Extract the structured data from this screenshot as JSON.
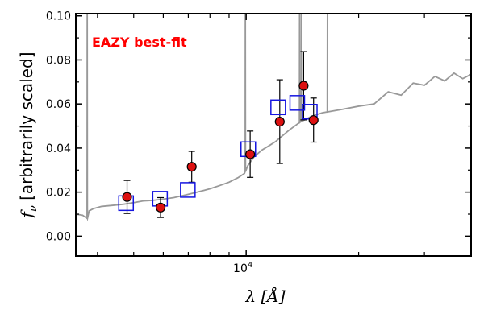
{
  "chart_data": {
    "type": "scatter",
    "title": "",
    "annotation": "EAZY best-fit",
    "xlabel": "λ [Å]",
    "ylabel_prefix": "f",
    "ylabel_sub": "ν",
    "ylabel_rest": " [arbitrarily scaled]",
    "xscale": "log",
    "xlim": [
      3500,
      40000
    ],
    "ylim": [
      -0.009,
      0.101
    ],
    "yticks": [
      0.0,
      0.02,
      0.04,
      0.06,
      0.08,
      0.1
    ],
    "ytick_labels": [
      "0.00",
      "0.02",
      "0.04",
      "0.06",
      "0.08",
      "0.10"
    ],
    "xtick_major": [
      10000
    ],
    "xtick_major_label_base": "10",
    "xtick_major_label_exp": "4",
    "xtick_minor": [
      4000,
      5000,
      6000,
      7000,
      8000,
      9000,
      20000,
      30000
    ],
    "grid": false,
    "legend": "none",
    "colors": {
      "model": "#999999",
      "observed": "#dd1111",
      "model_flux": "#1515e0",
      "annotation": "#ff0000"
    },
    "series": [
      {
        "kind": "line",
        "role": "template",
        "x": [
          3500,
          3650,
          3760,
          3800,
          3900,
          4100,
          4400,
          4700,
          5000,
          5300,
          5600,
          6000,
          6400,
          6800,
          7200,
          7600,
          8000,
          8500,
          9000,
          9500,
          9900,
          10100,
          10500,
          11000,
          11500,
          12000,
          13000,
          14000,
          15000,
          16000,
          17000,
          18000,
          20000,
          22000,
          24000,
          26000,
          28000,
          30000,
          32000,
          34000,
          36000,
          38000,
          40000
        ],
        "y": [
          0.01,
          0.0095,
          0.008,
          0.0115,
          0.0125,
          0.0135,
          0.014,
          0.0145,
          0.0152,
          0.016,
          0.0162,
          0.0168,
          0.0175,
          0.0185,
          0.0195,
          0.0205,
          0.0215,
          0.023,
          0.0245,
          0.0265,
          0.0285,
          0.032,
          0.036,
          0.039,
          0.041,
          0.043,
          0.048,
          0.052,
          0.0545,
          0.056,
          0.0568,
          0.0575,
          0.059,
          0.0615,
          0.064,
          0.0655,
          0.068,
          0.07,
          0.071,
          0.072,
          0.0725,
          0.073,
          0.072
        ],
        "spikes": [
          {
            "x": 3755,
            "y": 0.101
          },
          {
            "x": 9950,
            "y": 0.101
          },
          {
            "x": 13900,
            "y": 0.101
          },
          {
            "x": 14050,
            "y": 0.101
          },
          {
            "x": 16500,
            "y": 0.101
          }
        ]
      },
      {
        "kind": "scatter",
        "role": "observed",
        "x": [
          4800,
          5900,
          7150,
          10250,
          12300,
          14250,
          15150
        ],
        "y": [
          0.0178,
          0.013,
          0.0315,
          0.0372,
          0.052,
          0.0683,
          0.0527
        ],
        "yerr": [
          0.0075,
          0.0045,
          0.007,
          0.0105,
          0.019,
          0.0155,
          0.01
        ]
      },
      {
        "kind": "scatter",
        "role": "model_flux",
        "x": [
          4770,
          5880,
          6980,
          10130,
          12180,
          13700,
          14800
        ],
        "y": [
          0.015,
          0.017,
          0.021,
          0.0395,
          0.0585,
          0.0605,
          0.0565
        ]
      }
    ]
  }
}
